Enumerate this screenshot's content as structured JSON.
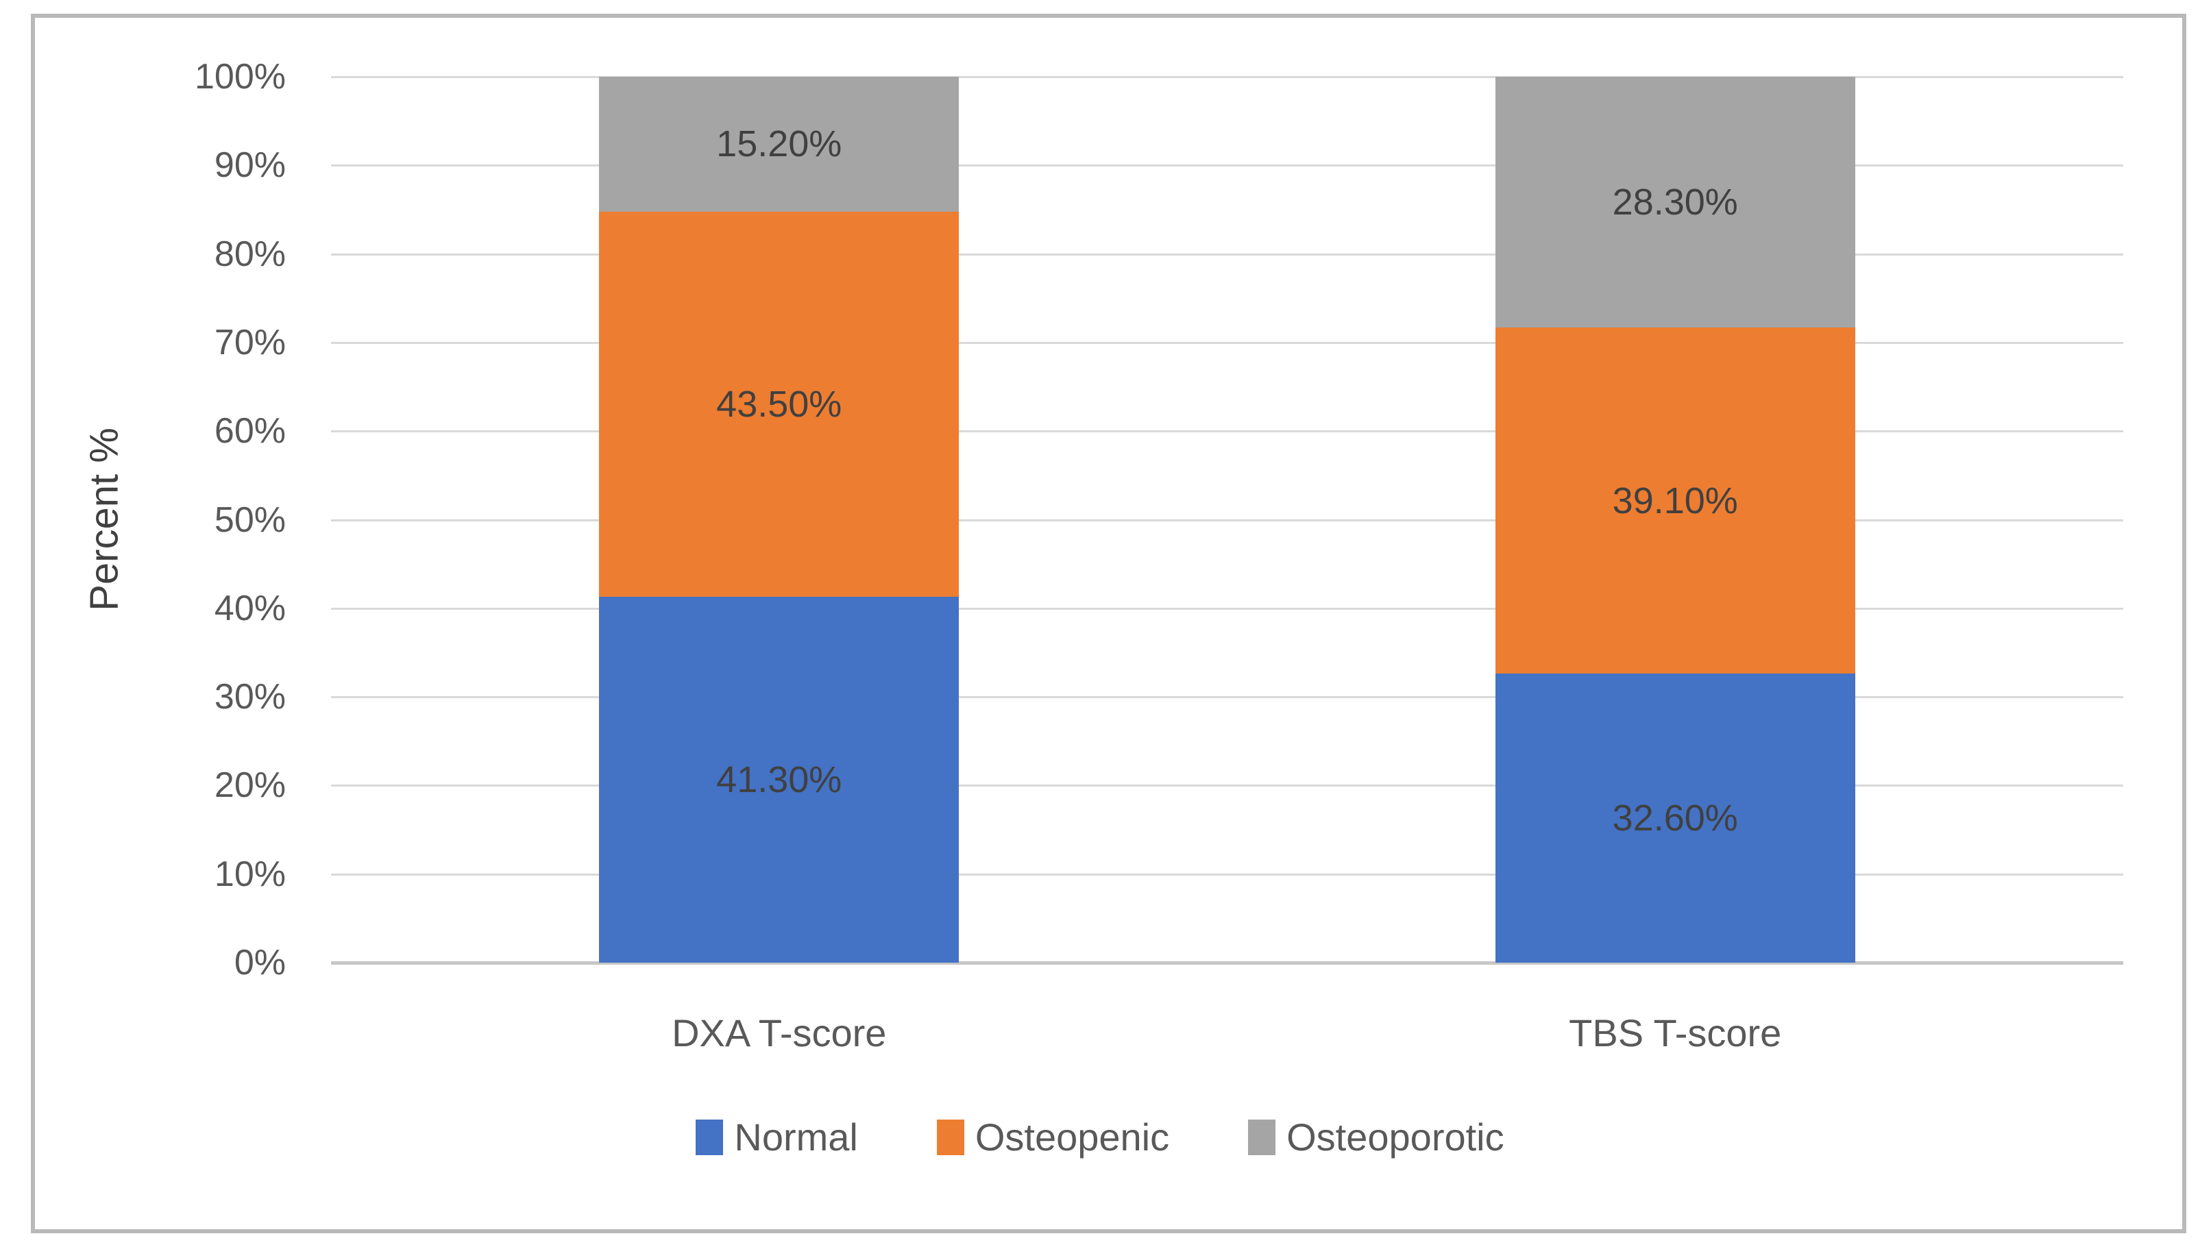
{
  "figure": {
    "background_color": "#ffffff",
    "border_color": "#b9b9b9"
  },
  "chart_data": {
    "type": "bar",
    "variant": "stacked-100-percent-column",
    "title": "",
    "ylabel": "Percent %",
    "xlabel": "",
    "categories": [
      "DXA T-score",
      "TBS T-score"
    ],
    "series": [
      {
        "name": "Normal",
        "color": "#4472C4",
        "values": [
          41.3,
          32.6
        ],
        "data_labels": [
          "41.30%",
          "32.60%"
        ]
      },
      {
        "name": "Osteopenic",
        "color": "#ED7D31",
        "values": [
          43.5,
          39.1
        ],
        "data_labels": [
          "43.50%",
          "39.10%"
        ]
      },
      {
        "name": "Osteoporotic",
        "color": "#A5A5A5",
        "values": [
          15.2,
          28.3
        ],
        "data_labels": [
          "15.20%",
          "28.30%"
        ]
      }
    ],
    "ylim": [
      0,
      100
    ],
    "y_ticks": [
      "0%",
      "10%",
      "20%",
      "30%",
      "40%",
      "50%",
      "60%",
      "70%",
      "80%",
      "90%",
      "100%"
    ],
    "grid": true,
    "gridline_color": "#d9d9d9",
    "axis_line_color": "#c6c6c6",
    "tick_label_color": "#595959",
    "data_label_color": "#404040",
    "legend_position": "bottom"
  }
}
